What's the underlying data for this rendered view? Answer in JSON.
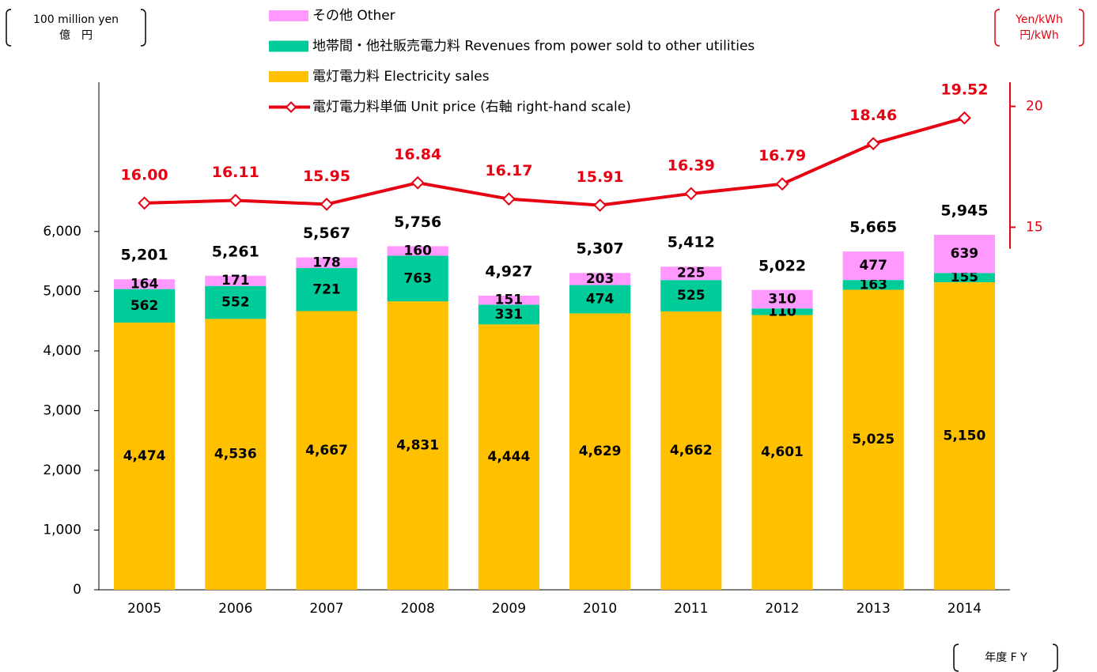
{
  "chart_data": {
    "type": "bar",
    "stacked": true,
    "unit_left": [
      "100 million yen",
      "億　円"
    ],
    "unit_right": [
      "Yen/kWh",
      "円/kWh"
    ],
    "x_label": "年度 F Y",
    "categories": [
      "2005",
      "2006",
      "2007",
      "2008",
      "2009",
      "2010",
      "2011",
      "2012",
      "2013",
      "2014"
    ],
    "series": [
      {
        "name": "電灯電力料 Electricity sales",
        "color": "#ffc000",
        "values": [
          4474,
          4536,
          4667,
          4831,
          4444,
          4629,
          4662,
          4601,
          5025,
          5150
        ],
        "value_labels": [
          "4,474",
          "4,536",
          "4,667",
          "4,831",
          "4,444",
          "4,629",
          "4,662",
          "4,601",
          "5,025",
          "5,150"
        ]
      },
      {
        "name": "地帯間・他社販売電力料 Revenues from power sold to other utilities",
        "color": "#00cc99",
        "values": [
          562,
          552,
          721,
          763,
          331,
          474,
          525,
          110,
          163,
          155
        ]
      },
      {
        "name": "その他 Other",
        "color": "#ff99ff",
        "values": [
          164,
          171,
          178,
          160,
          151,
          203,
          225,
          310,
          477,
          639
        ]
      },
      {
        "name": "電灯電力料単価 Unit price (右軸 right-hand scale)",
        "type": "line",
        "axis": "y2",
        "color": "#e60012",
        "values": [
          16.0,
          16.11,
          15.95,
          16.84,
          16.17,
          15.91,
          16.39,
          16.79,
          18.46,
          19.52
        ],
        "value_labels": [
          "16.00",
          "16.11",
          "15.95",
          "16.84",
          "16.17",
          "15.91",
          "16.39",
          "16.79",
          "18.46",
          "19.52"
        ]
      }
    ],
    "totals": {
      "values": [
        5201,
        5261,
        5567,
        5756,
        4927,
        5307,
        5412,
        5022,
        5665,
        5945
      ],
      "value_labels": [
        "5,201",
        "5,261",
        "5,567",
        "5,756",
        "4,927",
        "5,307",
        "5,412",
        "5,022",
        "5,665",
        "5,945"
      ]
    },
    "ylim": [
      0,
      8500
    ],
    "yticks": [
      0,
      {
        "value": 1000,
        "label": "1,000"
      },
      {
        "value": 2000,
        "label": "2,000"
      },
      {
        "value": 3000,
        "label": "3,000"
      },
      {
        "value": 4000,
        "label": "4,000"
      },
      {
        "value": 5000,
        "label": "5,000"
      },
      {
        "value": 6000,
        "label": "6,000"
      }
    ],
    "y2lim": [
      0,
      21
    ],
    "y2ticks": [
      15,
      20
    ]
  }
}
